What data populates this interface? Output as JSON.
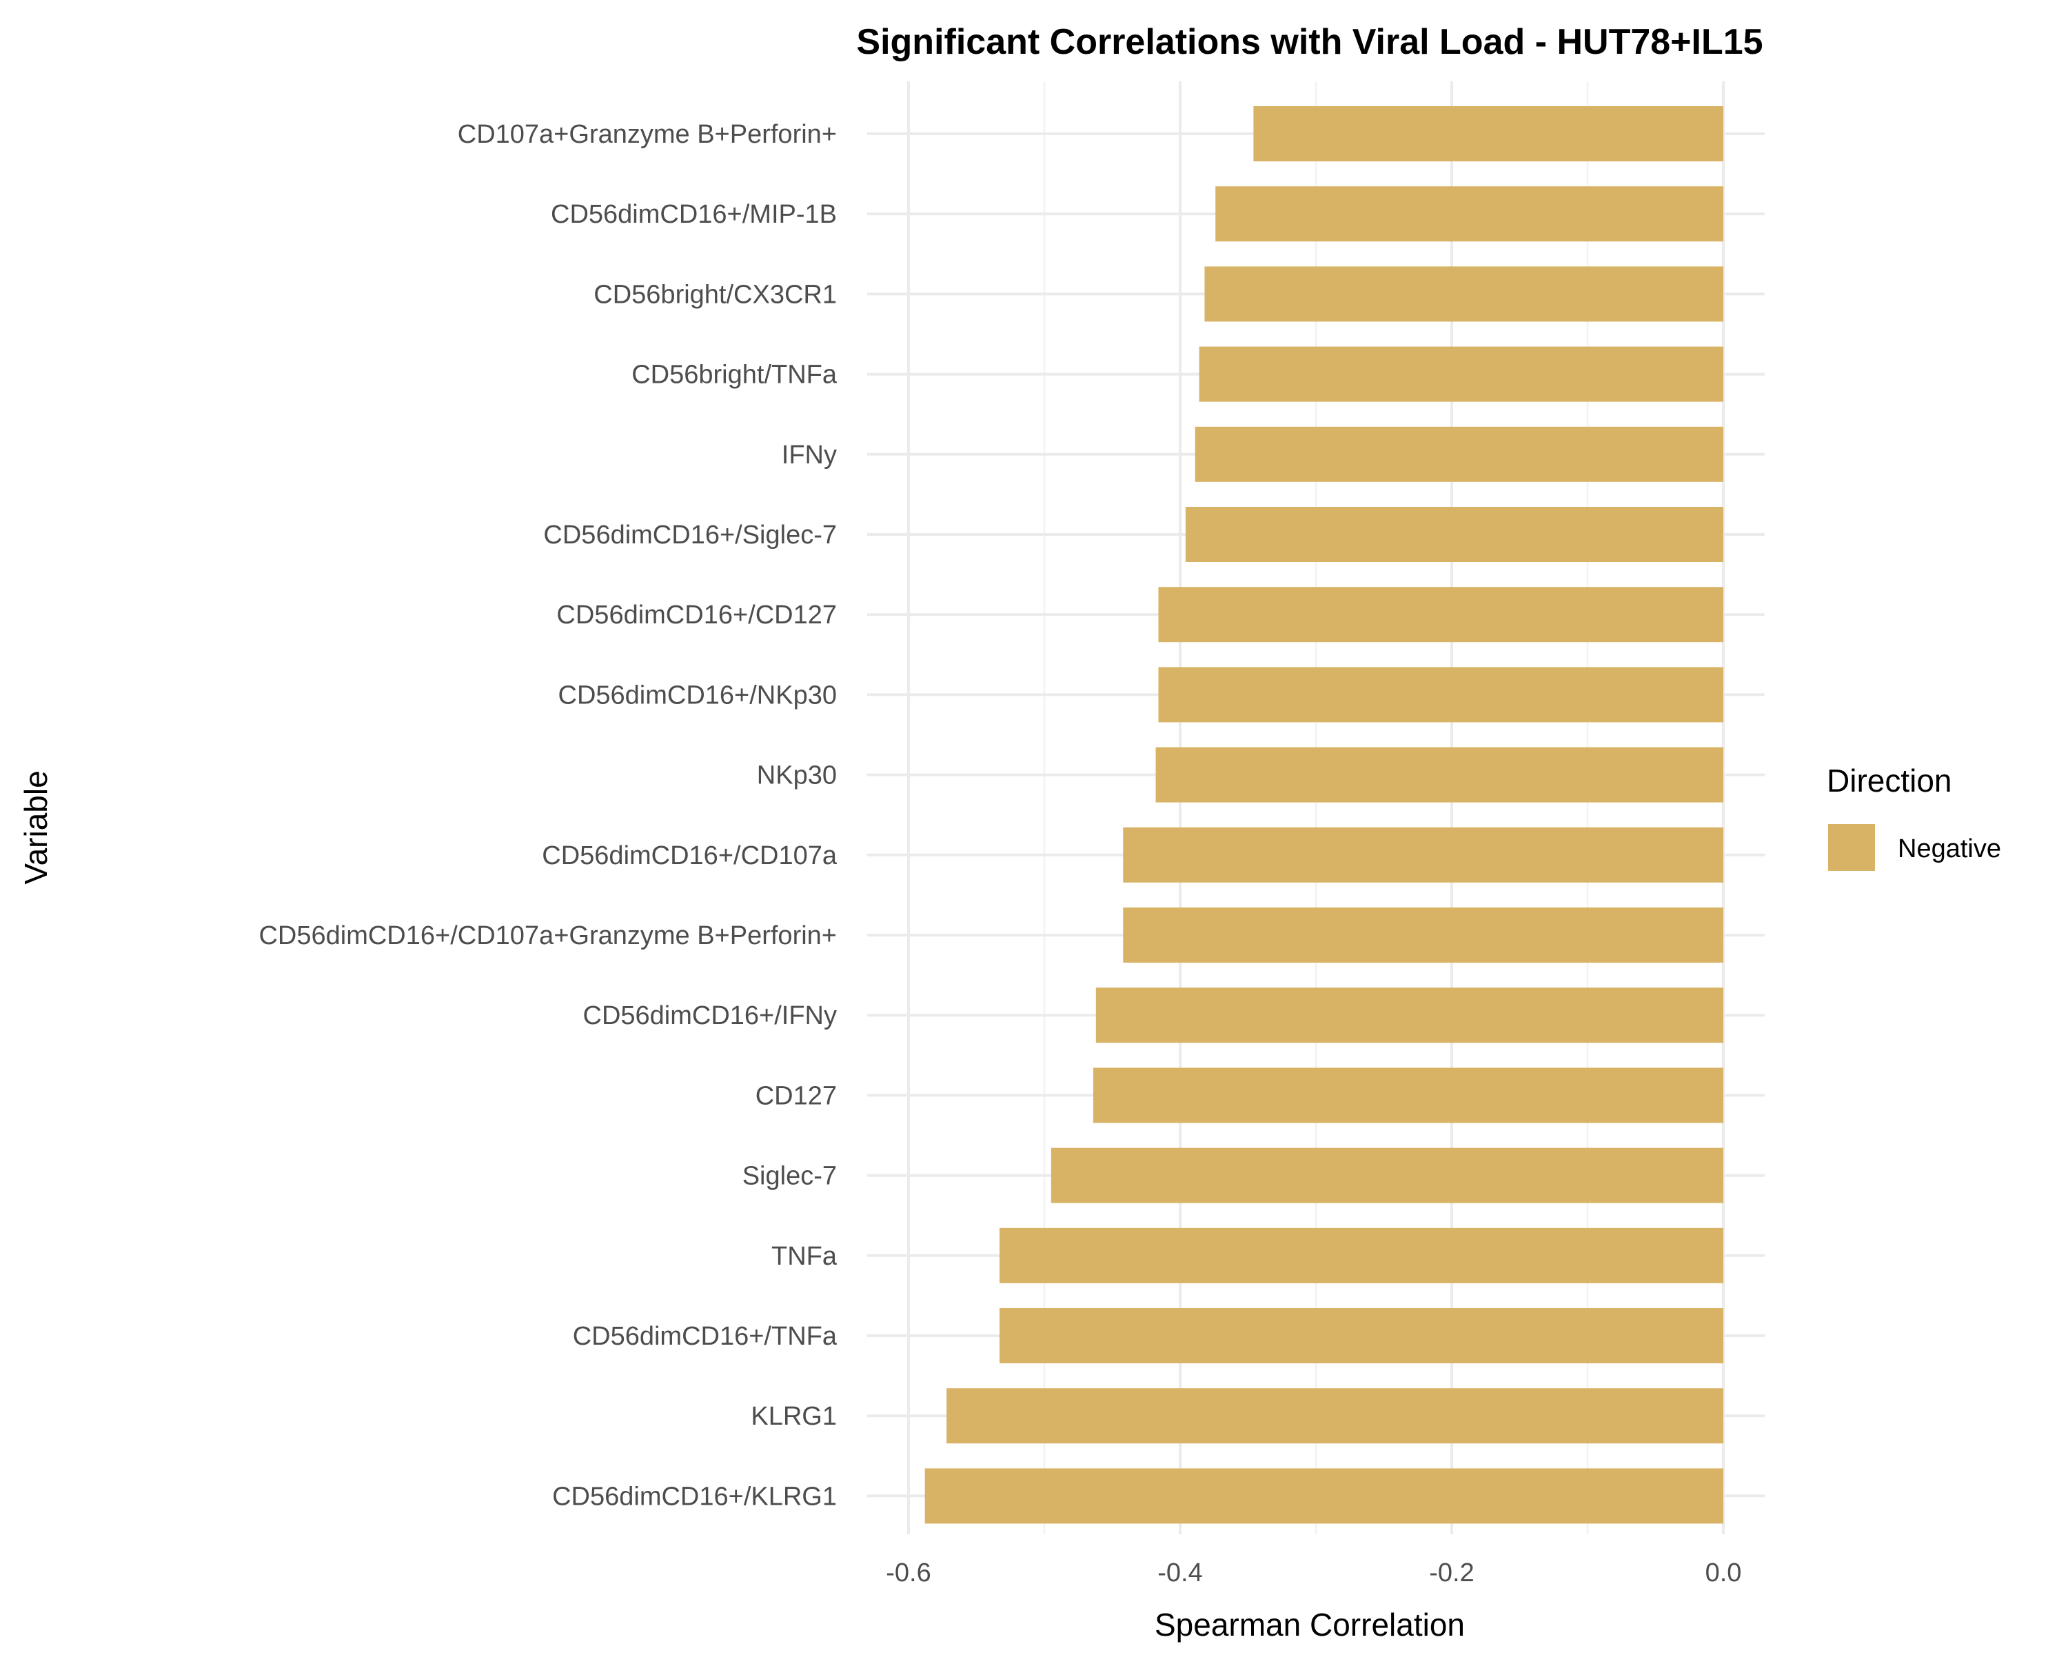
{
  "chart_data": {
    "type": "bar",
    "orientation": "horizontal",
    "title": "Significant Correlations with Viral Load - HUT78+IL15",
    "xlabel": "Spearman Correlation",
    "ylabel": "Variable",
    "xlim": [
      -0.6,
      0.0
    ],
    "xticks": [
      {
        "value": -0.6,
        "label": "-0.6"
      },
      {
        "value": -0.4,
        "label": "-0.4"
      },
      {
        "value": -0.2,
        "label": "-0.2"
      },
      {
        "value": 0.0,
        "label": "0.0"
      }
    ],
    "grid": true,
    "legend": {
      "title": "Direction",
      "placement": "right",
      "entries": [
        {
          "label": "Negative",
          "color": "#D8B365"
        }
      ]
    },
    "categories": [
      "CD107a+Granzyme B+Perforin+",
      "CD56dimCD16+/MIP-1B",
      "CD56bright/CX3CR1",
      "CD56bright/TNFa",
      "IFNy",
      "CD56dimCD16+/Siglec-7",
      "CD56dimCD16+/CD127",
      "CD56dimCD16+/NKp30",
      "NKp30",
      "CD56dimCD16+/CD107a",
      "CD56dimCD16+/CD107a+Granzyme B+Perforin+",
      "CD56dimCD16+/IFNy",
      "CD127",
      "Siglec-7",
      "TNFa",
      "CD56dimCD16+/TNFa",
      "KLRG1",
      "CD56dimCD16+/KLRG1"
    ],
    "values": [
      -0.346,
      -0.374,
      -0.382,
      -0.386,
      -0.389,
      -0.396,
      -0.416,
      -0.416,
      -0.418,
      -0.442,
      -0.442,
      -0.462,
      -0.464,
      -0.495,
      -0.533,
      -0.533,
      -0.572,
      -0.588
    ],
    "bar_color": "#D8B365"
  }
}
